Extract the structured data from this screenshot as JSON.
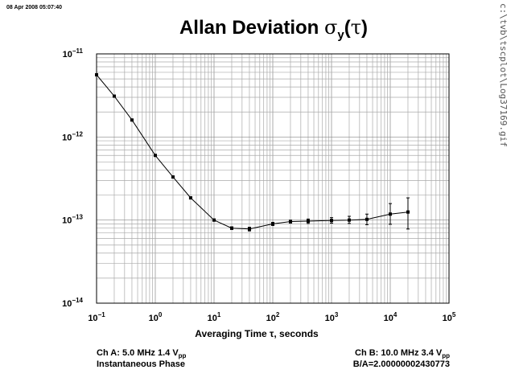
{
  "header": {
    "timestamp": "08 Apr 2008 05:07:40",
    "title_text": "Allan Deviation ",
    "title_sigma": "σ",
    "title_sub": "y",
    "title_paren_open": "(",
    "title_tau": "τ",
    "title_paren_close": ")",
    "side_path": "c:\\tvb\\tscplot\\Log37169.gif"
  },
  "footer": {
    "ch_a_prefix": "Ch A: 5.0 MHz 1.4 V",
    "ch_a_sub": "pp",
    "ch_a_mode": "Instantaneous Phase",
    "ch_b_prefix": "Ch B: 10.0 MHz 3.4 V",
    "ch_b_sub": "pp",
    "ratio": "B/A=2.00000002430773"
  },
  "chart_data": {
    "type": "scatter",
    "xlabel": "Averaging Time τ, seconds",
    "ylabel": "",
    "xscale": "log",
    "yscale": "log",
    "xlim": [
      0.1,
      100000
    ],
    "ylim": [
      1e-14,
      1e-11
    ],
    "grid": true,
    "x_ticks": [
      {
        "base": "10",
        "exp": "−1"
      },
      {
        "base": "10",
        "exp": "0"
      },
      {
        "base": "10",
        "exp": "1"
      },
      {
        "base": "10",
        "exp": "2"
      },
      {
        "base": "10",
        "exp": "3"
      },
      {
        "base": "10",
        "exp": "4"
      },
      {
        "base": "10",
        "exp": "5"
      }
    ],
    "y_ticks": [
      {
        "base": "10",
        "exp": "−11"
      },
      {
        "base": "10",
        "exp": "−12"
      },
      {
        "base": "10",
        "exp": "−13"
      },
      {
        "base": "10",
        "exp": "−14"
      }
    ],
    "series": [
      {
        "points": [
          {
            "x": 0.1,
            "y": 5.6e-12,
            "lo": 5.5e-12,
            "hi": 5.7e-12
          },
          {
            "x": 0.2,
            "y": 3.1e-12,
            "lo": 3.05e-12,
            "hi": 3.15e-12
          },
          {
            "x": 0.4,
            "y": 1.6e-12,
            "lo": 1.57e-12,
            "hi": 1.63e-12
          },
          {
            "x": 1,
            "y": 6e-13,
            "lo": 5.9e-13,
            "hi": 6.1e-13
          },
          {
            "x": 2,
            "y": 3.3e-13,
            "lo": 3.23e-13,
            "hi": 3.37e-13
          },
          {
            "x": 4,
            "y": 1.85e-13,
            "lo": 1.8e-13,
            "hi": 1.9e-13
          },
          {
            "x": 10,
            "y": 1e-13,
            "lo": 9.7e-14,
            "hi": 1.03e-13
          },
          {
            "x": 20,
            "y": 8e-14,
            "lo": 7.7e-14,
            "hi": 8.3e-14
          },
          {
            "x": 40,
            "y": 7.8e-14,
            "lo": 7.4e-14,
            "hi": 8.2e-14
          },
          {
            "x": 100,
            "y": 9e-14,
            "lo": 8.6e-14,
            "hi": 9.4e-14
          },
          {
            "x": 200,
            "y": 9.6e-14,
            "lo": 9.2e-14,
            "hi": 1e-13
          },
          {
            "x": 400,
            "y": 9.7e-14,
            "lo": 9.1e-14,
            "hi": 1.03e-13
          },
          {
            "x": 1000,
            "y": 9.9e-14,
            "lo": 9.2e-14,
            "hi": 1.07e-13
          },
          {
            "x": 2000,
            "y": 1e-13,
            "lo": 9.1e-14,
            "hi": 1.11e-13
          },
          {
            "x": 4000,
            "y": 1.02e-13,
            "lo": 8.8e-14,
            "hi": 1.18e-13
          },
          {
            "x": 10000,
            "y": 1.18e-13,
            "lo": 8.9e-14,
            "hi": 1.58e-13
          },
          {
            "x": 20000,
            "y": 1.25e-13,
            "lo": 7.8e-14,
            "hi": 1.85e-13
          }
        ]
      }
    ]
  }
}
